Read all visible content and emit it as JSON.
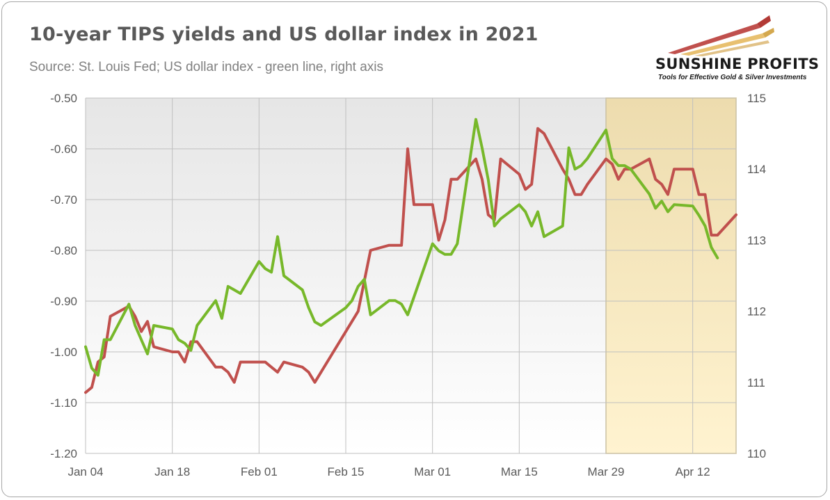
{
  "title": "10-year TIPS yields and US dollar index in 2021",
  "subtitle": "Source: St. Louis Fed; US dollar index - green line, right axis",
  "logo": {
    "name": "SUNSHINE PROFITS",
    "tagline": "Tools for Effective Gold & Silver Investments"
  },
  "colors": {
    "tips": "#c0504d",
    "usd": "#77b82a",
    "highlight": "#f0dfae",
    "grid": "#bfbfbf"
  },
  "chart_data": {
    "type": "line",
    "title": "10-year TIPS yields and US dollar index in 2021",
    "subtitle": "Source: St. Louis Fed; US dollar index - green line, right axis",
    "x_tick_labels": [
      "Jan 04",
      "Jan 18",
      "Feb 01",
      "Feb 15",
      "Mar 01",
      "Mar 15",
      "Mar 29",
      "Apr 12"
    ],
    "x_tick_days": [
      0,
      14,
      28,
      42,
      56,
      70,
      84,
      98
    ],
    "x_range_days": [
      0,
      105
    ],
    "y_left": {
      "range": [
        -1.2,
        -0.5
      ],
      "ticks": [
        "-0.50",
        "-0.60",
        "-0.70",
        "-0.80",
        "-0.90",
        "-1.00",
        "-1.10",
        "-1.20"
      ]
    },
    "y_right": {
      "range": [
        110,
        115
      ],
      "ticks": [
        "115",
        "114",
        "113",
        "112",
        "111",
        "110"
      ]
    },
    "highlight_range_days": [
      84,
      105
    ],
    "grid": true,
    "series": [
      {
        "axis": "left",
        "days": [
          0,
          1,
          2,
          3,
          4,
          7,
          8,
          9,
          10,
          11,
          14,
          15,
          16,
          17,
          18,
          21,
          22,
          23,
          24,
          25,
          28,
          29,
          30,
          31,
          32,
          35,
          36,
          37,
          38,
          42,
          43,
          44,
          45,
          46,
          49,
          50,
          51,
          52,
          53,
          56,
          57,
          58,
          59,
          60,
          63,
          64,
          65,
          66,
          67,
          70,
          71,
          72,
          73,
          74,
          77,
          78,
          79,
          80,
          81,
          84,
          85,
          86,
          87,
          88,
          91,
          92,
          93,
          94,
          95,
          98,
          99,
          100,
          101,
          102,
          105
        ],
        "values": [
          -1.08,
          -1.07,
          -1.02,
          -1.01,
          -0.93,
          -0.91,
          -0.93,
          -0.96,
          -0.94,
          -0.99,
          -1.0,
          -1.0,
          -1.02,
          -0.98,
          -0.98,
          -1.03,
          -1.03,
          -1.04,
          -1.06,
          -1.02,
          -1.02,
          -1.02,
          -1.03,
          -1.04,
          -1.02,
          -1.03,
          -1.04,
          -1.06,
          -1.04,
          -0.96,
          -0.94,
          -0.92,
          -0.86,
          -0.8,
          -0.79,
          -0.79,
          -0.79,
          -0.6,
          -0.71,
          -0.71,
          -0.78,
          -0.74,
          -0.66,
          -0.66,
          -0.62,
          -0.66,
          -0.73,
          -0.74,
          -0.62,
          -0.65,
          -0.68,
          -0.67,
          -0.56,
          -0.57,
          -0.64,
          -0.66,
          -0.69,
          -0.69,
          -0.67,
          -0.62,
          -0.63,
          -0.66,
          -0.64,
          -0.64,
          -0.62,
          -0.66,
          -0.67,
          -0.69,
          -0.64,
          -0.64,
          -0.69,
          -0.69,
          -0.77,
          -0.77,
          -0.73
        ]
      },
      {
        "axis": "right",
        "days": [
          0,
          1,
          2,
          3,
          4,
          7,
          8,
          9,
          10,
          11,
          14,
          15,
          16,
          17,
          18,
          21,
          22,
          23,
          24,
          25,
          28,
          29,
          30,
          31,
          32,
          35,
          36,
          37,
          38,
          42,
          43,
          44,
          45,
          46,
          49,
          50,
          51,
          52,
          53,
          56,
          57,
          58,
          59,
          60,
          63,
          64,
          65,
          66,
          67,
          70,
          71,
          72,
          73,
          74,
          77,
          78,
          79,
          80,
          81,
          84,
          85,
          86,
          87,
          88,
          91,
          92,
          93,
          94,
          95,
          98,
          99,
          100,
          101,
          102
        ],
        "values": [
          111.5,
          111.2,
          111.1,
          111.6,
          111.6,
          112.1,
          111.8,
          111.6,
          111.4,
          111.8,
          111.75,
          111.6,
          111.55,
          111.45,
          111.8,
          112.15,
          111.9,
          112.35,
          112.3,
          112.25,
          112.7,
          112.6,
          112.55,
          113.05,
          112.5,
          112.3,
          112.05,
          111.85,
          111.8,
          112.05,
          112.15,
          112.35,
          112.45,
          111.95,
          112.15,
          112.15,
          112.1,
          111.95,
          112.2,
          112.95,
          112.85,
          112.8,
          112.8,
          112.95,
          114.7,
          114.3,
          113.85,
          113.2,
          113.3,
          113.5,
          113.4,
          113.2,
          113.4,
          113.05,
          113.2,
          114.3,
          114.0,
          114.05,
          114.15,
          114.55,
          114.15,
          114.05,
          114.05,
          114.0,
          113.65,
          113.45,
          113.55,
          113.4,
          113.5,
          113.48,
          113.35,
          113.2,
          112.9,
          112.75
        ]
      }
    ]
  }
}
